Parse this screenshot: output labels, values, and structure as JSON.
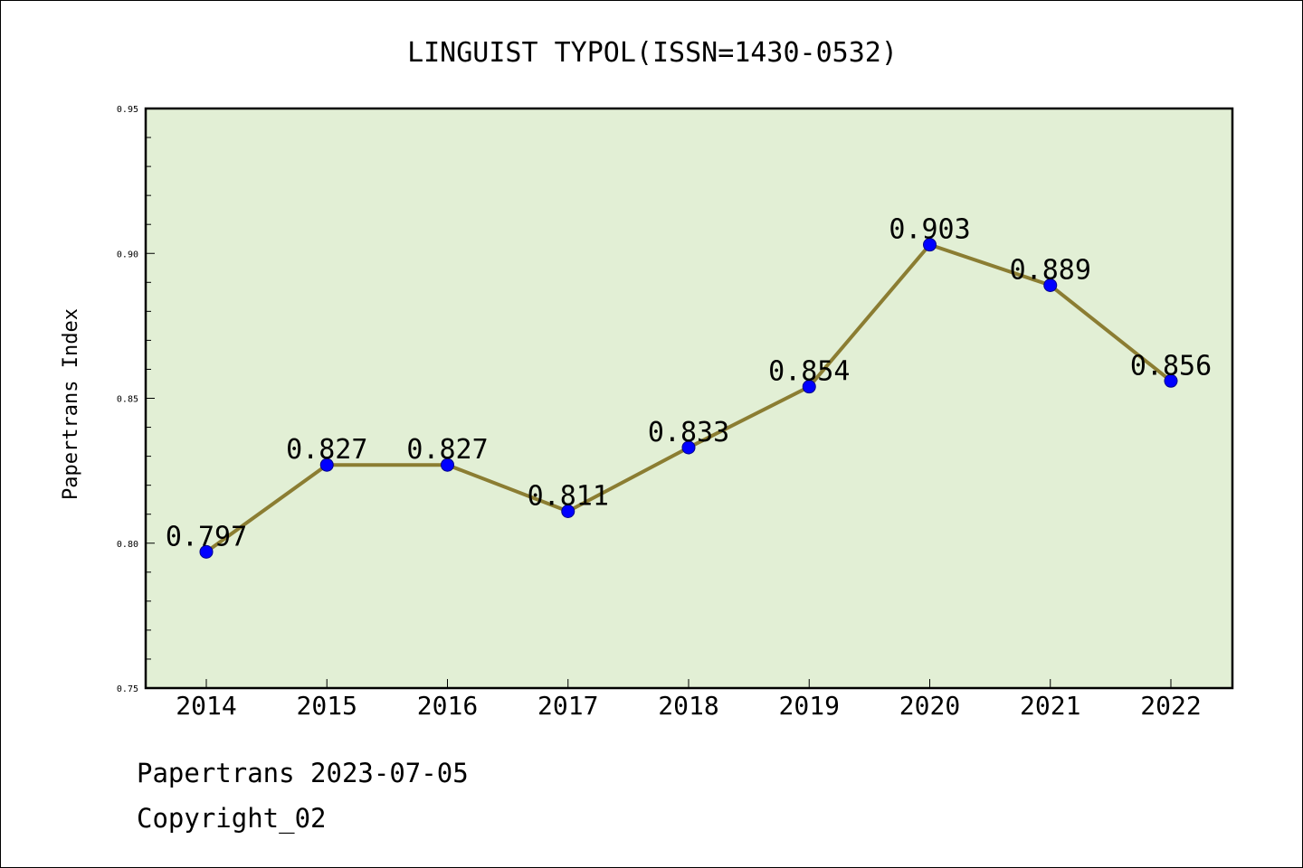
{
  "chart_data": {
    "type": "line",
    "title": "LINGUIST TYPOL(ISSN=1430-0532)",
    "xlabel": "",
    "ylabel": "Papertrans Index",
    "categories": [
      "2014",
      "2015",
      "2016",
      "2017",
      "2018",
      "2019",
      "2020",
      "2021",
      "2022"
    ],
    "series": [
      {
        "values": [
          0.797,
          0.827,
          0.827,
          0.811,
          0.833,
          0.854,
          0.903,
          0.889,
          0.856
        ]
      }
    ],
    "data_labels": [
      "0.797",
      "0.827",
      "0.827",
      "0.811",
      "0.833",
      "0.854",
      "0.903",
      "0.889",
      "0.856"
    ],
    "ylim": [
      0.75,
      0.95
    ],
    "yticks": [
      0.75,
      0.8,
      0.85,
      0.9,
      0.95
    ],
    "ytick_labels": [
      "0.75",
      "0.80",
      "0.85",
      "0.90",
      "0.95"
    ],
    "grid": false,
    "colors": {
      "plot_background": "#e2efd5",
      "line": "#8b7d32",
      "marker": "#0000ff"
    }
  },
  "footer": {
    "line1": "Papertrans 2023-07-05",
    "line2": "Copyright_02"
  }
}
